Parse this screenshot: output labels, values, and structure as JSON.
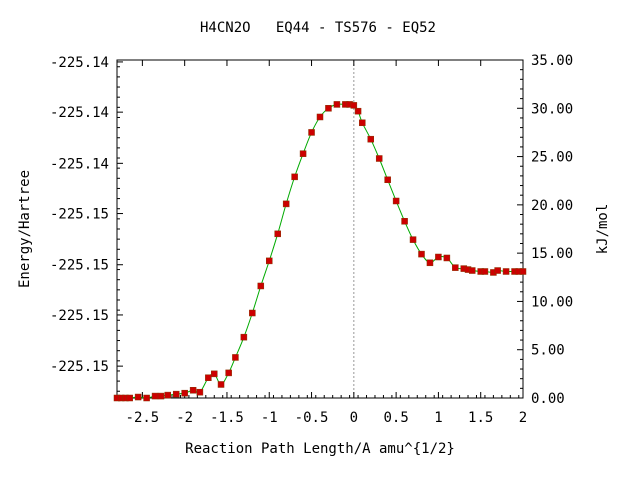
{
  "chart_data": {
    "type": "line",
    "title": "H4CN2O   EQ44 - TS576 - EQ52",
    "xlabel": "Reaction Path Length/A amu^{1/2}",
    "ylabel_left": "Energy/Hartree",
    "ylabel_right": "kJ/mol",
    "xlim": [
      -2.8,
      2.0
    ],
    "ylim_kj": [
      0,
      35
    ],
    "x_ticks": [
      -2.5,
      -2,
      -1.5,
      -1,
      -0.5,
      0,
      0.5,
      1,
      1.5,
      2
    ],
    "x_tick_labels": [
      "-2.5",
      "-2",
      "-1.5",
      "-1",
      "-0.5",
      "0",
      "0.5",
      "1",
      "1.5",
      "2"
    ],
    "left_tick_labels": [
      "-225.14",
      "-225.14",
      "-225.14",
      "-225.15",
      "-225.15",
      "-225.15",
      "-225.15"
    ],
    "left_tick_positions_kj": [
      34.8,
      29.6,
      24.3,
      19.1,
      13.8,
      8.6,
      3.3
    ],
    "right_ticks": [
      0,
      5,
      10,
      15,
      20,
      25,
      30,
      35
    ],
    "right_tick_labels": [
      "0.00",
      "5.00",
      "10.00",
      "15.00",
      "20.00",
      "25.00",
      "30.00",
      "35.00"
    ],
    "ts_x": 0,
    "colors": {
      "line": "#00aa00",
      "marker": "#cc0000",
      "ts_line": "#999999"
    },
    "series": [
      {
        "x": [
          -2.8,
          -2.75,
          -2.7,
          -2.65,
          -2.55,
          -2.45,
          -2.35,
          -2.28,
          -2.2,
          -2.1,
          -2.0,
          -1.9,
          -1.82,
          -1.72,
          -1.65,
          -1.57,
          -1.48,
          -1.4,
          -1.3,
          -1.2,
          -1.1,
          -1.0,
          -0.9,
          -0.8,
          -0.7,
          -0.6,
          -0.5,
          -0.4,
          -0.3,
          -0.2,
          -0.1,
          -0.05,
          0.0,
          0.05,
          0.1,
          0.2,
          0.3,
          0.4,
          0.5,
          0.6,
          0.7,
          0.8,
          0.9,
          1.0,
          1.1,
          1.2,
          1.3,
          1.35,
          1.4,
          1.5,
          1.55,
          1.65,
          1.7,
          1.8,
          1.9,
          1.95,
          2.0
        ],
        "y": [
          0.0,
          0.0,
          0.0,
          0.0,
          0.1,
          0.0,
          0.2,
          0.2,
          0.3,
          0.4,
          0.5,
          0.8,
          0.6,
          2.1,
          2.5,
          1.4,
          2.6,
          4.2,
          6.3,
          8.8,
          11.6,
          14.2,
          17.0,
          20.1,
          22.9,
          25.3,
          27.5,
          29.1,
          30.0,
          30.4,
          30.4,
          30.4,
          30.3,
          29.7,
          28.5,
          26.8,
          24.8,
          22.6,
          20.4,
          18.3,
          16.4,
          14.9,
          14.0,
          14.6,
          14.5,
          13.5,
          13.4,
          13.3,
          13.2,
          13.1,
          13.1,
          13.0,
          13.2,
          13.1,
          13.1,
          13.1,
          13.1
        ]
      }
    ]
  }
}
